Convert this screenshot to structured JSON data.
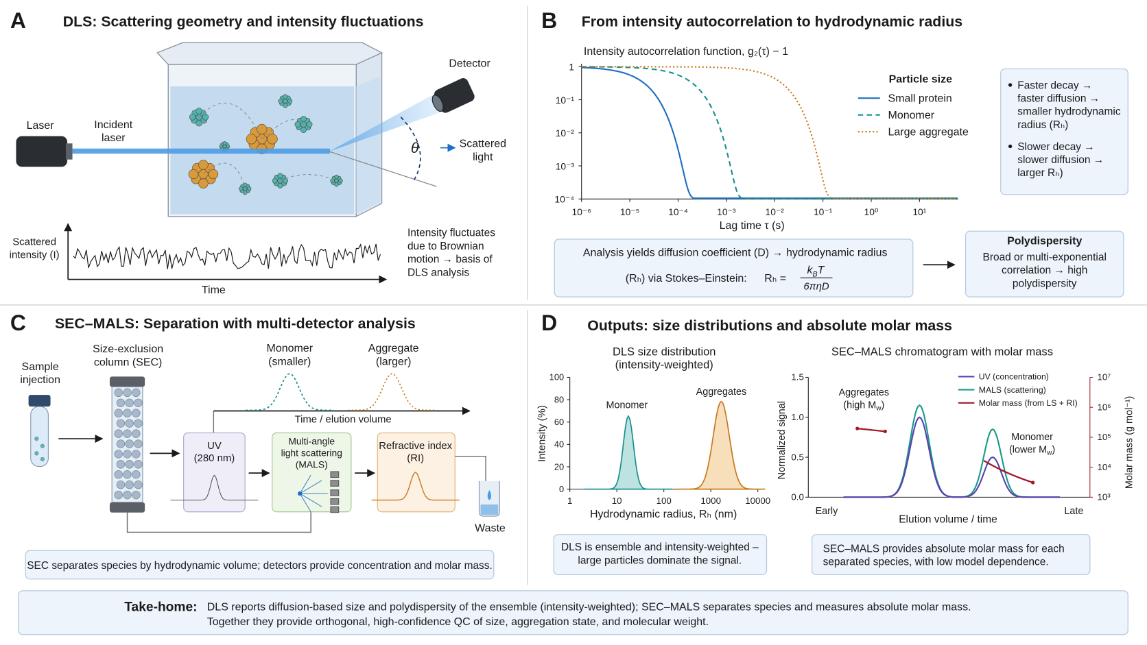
{
  "panel_a": {
    "letter": "A",
    "title": "DLS: Scattering geometry and intensity fluctuations",
    "laser": "Laser",
    "incident_laser": [
      "Incident",
      "laser"
    ],
    "detector": "Detector",
    "theta": "θ",
    "scattered_light": [
      "Scattered",
      "light"
    ],
    "y_axis_label": [
      "Scattered",
      "intensity (I)"
    ],
    "x_axis_label": "Time",
    "note": [
      "Intensity fluctuates",
      "due to Brownian",
      "motion → basis of",
      "DLS analysis"
    ]
  },
  "panel_b": {
    "letter": "B",
    "title": "From intensity autocorrelation to hydrodynamic radius",
    "y_axis_label": "Intensity autocorrelation function, g₂(τ) − 1",
    "y_ticks": [
      "1",
      "10⁻¹",
      "10⁻²",
      "10⁻³",
      "10⁻⁴"
    ],
    "x_ticks": [
      "10⁻⁶",
      "10⁻⁵",
      "10⁻⁴",
      "10⁻³",
      "10⁻²",
      "10⁻¹",
      "10⁰",
      "10¹"
    ],
    "x_axis_label": "Lag time τ (s)",
    "legend_title": "Particle size",
    "legend": [
      "Small protein",
      "Monomer",
      "Large aggregate"
    ],
    "notes": [
      [
        "Faster decay →",
        "faster diffusion →",
        "smaller hydrodynamic",
        "radius (Rₕ)"
      ],
      [
        "Slower decay →",
        "slower diffusion →",
        "larger Rₕ)"
      ]
    ],
    "analysis": {
      "line1": "Analysis yields diffusion coefficient (D) → hydrodynamic radius",
      "line2": "(Rₕ) via Stokes–Einstein:",
      "lhs": "Rₕ =",
      "numerator": "k",
      "numerator_sub": "B",
      "numerator_tail": "T",
      "denominator": "6πηD"
    },
    "polydispersity": {
      "title": "Polydispersity",
      "lines": [
        "Broad or multi-exponential",
        "correlation → high",
        "polydispersity"
      ]
    }
  },
  "panel_c": {
    "letter": "C",
    "title": "SEC–MALS: Separation with multi-detector analysis",
    "sample": [
      "Sample",
      "injection"
    ],
    "column": [
      "Size-exclusion",
      "column (SEC)"
    ],
    "monomer": [
      "Monomer",
      "(smaller)"
    ],
    "aggregate": [
      "Aggregate",
      "(larger)"
    ],
    "axis_label": "Time / elution volume",
    "uv": [
      "UV",
      "(280 nm)"
    ],
    "mals": [
      "Multi-angle",
      "light scattering",
      "(MALS)"
    ],
    "ri": [
      "Refractive index",
      "(RI)"
    ],
    "waste": "Waste",
    "caption": "SEC separates species by hydrodynamic volume; detectors provide concentration and molar mass."
  },
  "panel_d": {
    "letter": "D",
    "title": "Outputs: size distributions and absolute molar mass",
    "dls": {
      "title": [
        "DLS size distribution",
        "(intensity-weighted)"
      ],
      "y_label": "Intensity (%)",
      "y_ticks": [
        0,
        20,
        40,
        60,
        80,
        100
      ],
      "x_ticks": [
        1,
        10,
        100,
        1000,
        10000
      ],
      "x_label": "Hydrodynamic radius, Rₕ (nm)",
      "peaks": [
        "Monomer",
        "Aggregates"
      ],
      "caption": [
        "DLS is ensemble and intensity-weighted –",
        "large particles dominate the signal."
      ]
    },
    "secmals": {
      "title": "SEC–MALS chromatogram with molar mass",
      "y_label": "Normalized signal",
      "y_ticks": [
        "0.0",
        "0.5",
        "1.0",
        "1.5"
      ],
      "y2_ticks": [
        "10³",
        "10⁴",
        "10⁵",
        "10⁶",
        "10⁷"
      ],
      "y2_label": "Molar mass (g mol⁻¹)",
      "x_start": "Early",
      "x_end": "Late",
      "x_label": "Elution volume / time",
      "legend": [
        "UV (concentration)",
        "MALS (scattering)",
        "Molar mass (from LS + RI)"
      ],
      "aggregates_label": [
        "Aggregates",
        [
          "(high M",
          "w",
          ")"
        ]
      ],
      "monomer_label": [
        "Monomer",
        [
          "(lower M",
          "w",
          ")"
        ]
      ],
      "caption": [
        "SEC–MALS provides absolute molar mass for each",
        "separated species, with low model dependence."
      ]
    }
  },
  "take_home": {
    "label": "Take-home:",
    "lines": [
      "DLS reports diffusion-based size and polydispersity of the ensemble (intensity-weighted); SEC–MALS separates species and measures absolute molar mass.",
      "Together they provide orthogonal, high-confidence QC of size, aggregation state, and molecular weight."
    ]
  }
}
